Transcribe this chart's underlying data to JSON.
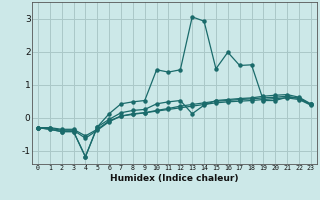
{
  "xlabel": "Humidex (Indice chaleur)",
  "bg_color": "#cce8e8",
  "grid_color": "#aac8c8",
  "line_color": "#1a6b6b",
  "xlim": [
    -0.5,
    23.5
  ],
  "ylim": [
    -1.4,
    3.5
  ],
  "yticks": [
    -1,
    0,
    1,
    2,
    3
  ],
  "xticks": [
    0,
    1,
    2,
    3,
    4,
    5,
    6,
    7,
    8,
    9,
    10,
    11,
    12,
    13,
    14,
    15,
    16,
    17,
    18,
    19,
    20,
    21,
    22,
    23
  ],
  "lines": [
    {
      "x": [
        0,
        1,
        2,
        3,
        4,
        5,
        6,
        7,
        8,
        9,
        10,
        11,
        12,
        13,
        14,
        15,
        16,
        17,
        18,
        19,
        20,
        21,
        22,
        23
      ],
      "y": [
        -0.3,
        -0.3,
        -0.35,
        -0.35,
        -0.55,
        -0.35,
        -0.1,
        0.05,
        0.1,
        0.15,
        0.2,
        0.25,
        0.3,
        0.35,
        0.4,
        0.45,
        0.48,
        0.5,
        0.52,
        0.55,
        0.58,
        0.6,
        0.55,
        0.38
      ]
    },
    {
      "x": [
        0,
        1,
        2,
        3,
        4,
        5,
        6,
        7,
        8,
        9,
        10,
        11,
        12,
        13,
        14,
        15,
        16,
        17,
        18,
        19,
        20,
        21,
        22,
        23
      ],
      "y": [
        -0.3,
        -0.32,
        -0.38,
        -0.38,
        -0.62,
        -0.38,
        -0.12,
        0.05,
        0.12,
        0.15,
        0.22,
        0.28,
        0.35,
        0.4,
        0.45,
        0.5,
        0.52,
        0.55,
        0.57,
        0.6,
        0.62,
        0.65,
        0.58,
        0.4
      ]
    },
    {
      "x": [
        0,
        1,
        2,
        3,
        4,
        5,
        6,
        7,
        8,
        9,
        10,
        11,
        12,
        13,
        14,
        15,
        16,
        17,
        18,
        19,
        20,
        21,
        22,
        23
      ],
      "y": [
        -0.3,
        -0.35,
        -0.42,
        -0.42,
        -1.18,
        -0.28,
        -0.05,
        0.15,
        0.22,
        0.25,
        0.42,
        0.48,
        0.52,
        0.12,
        0.38,
        0.52,
        0.55,
        0.58,
        0.6,
        0.65,
        0.68,
        0.7,
        0.62,
        0.42
      ]
    },
    {
      "x": [
        0,
        1,
        2,
        3,
        4,
        5,
        6,
        7,
        8,
        9,
        10,
        11,
        12,
        13,
        14,
        15,
        16,
        17,
        18,
        19,
        20,
        21,
        22,
        23
      ],
      "y": [
        -0.3,
        -0.35,
        -0.42,
        -0.42,
        -1.18,
        -0.28,
        0.12,
        0.42,
        0.48,
        0.52,
        1.45,
        1.38,
        1.45,
        3.05,
        2.92,
        1.48,
        1.98,
        1.58,
        1.6,
        0.52,
        0.52,
        0.62,
        0.6,
        0.4
      ]
    }
  ]
}
